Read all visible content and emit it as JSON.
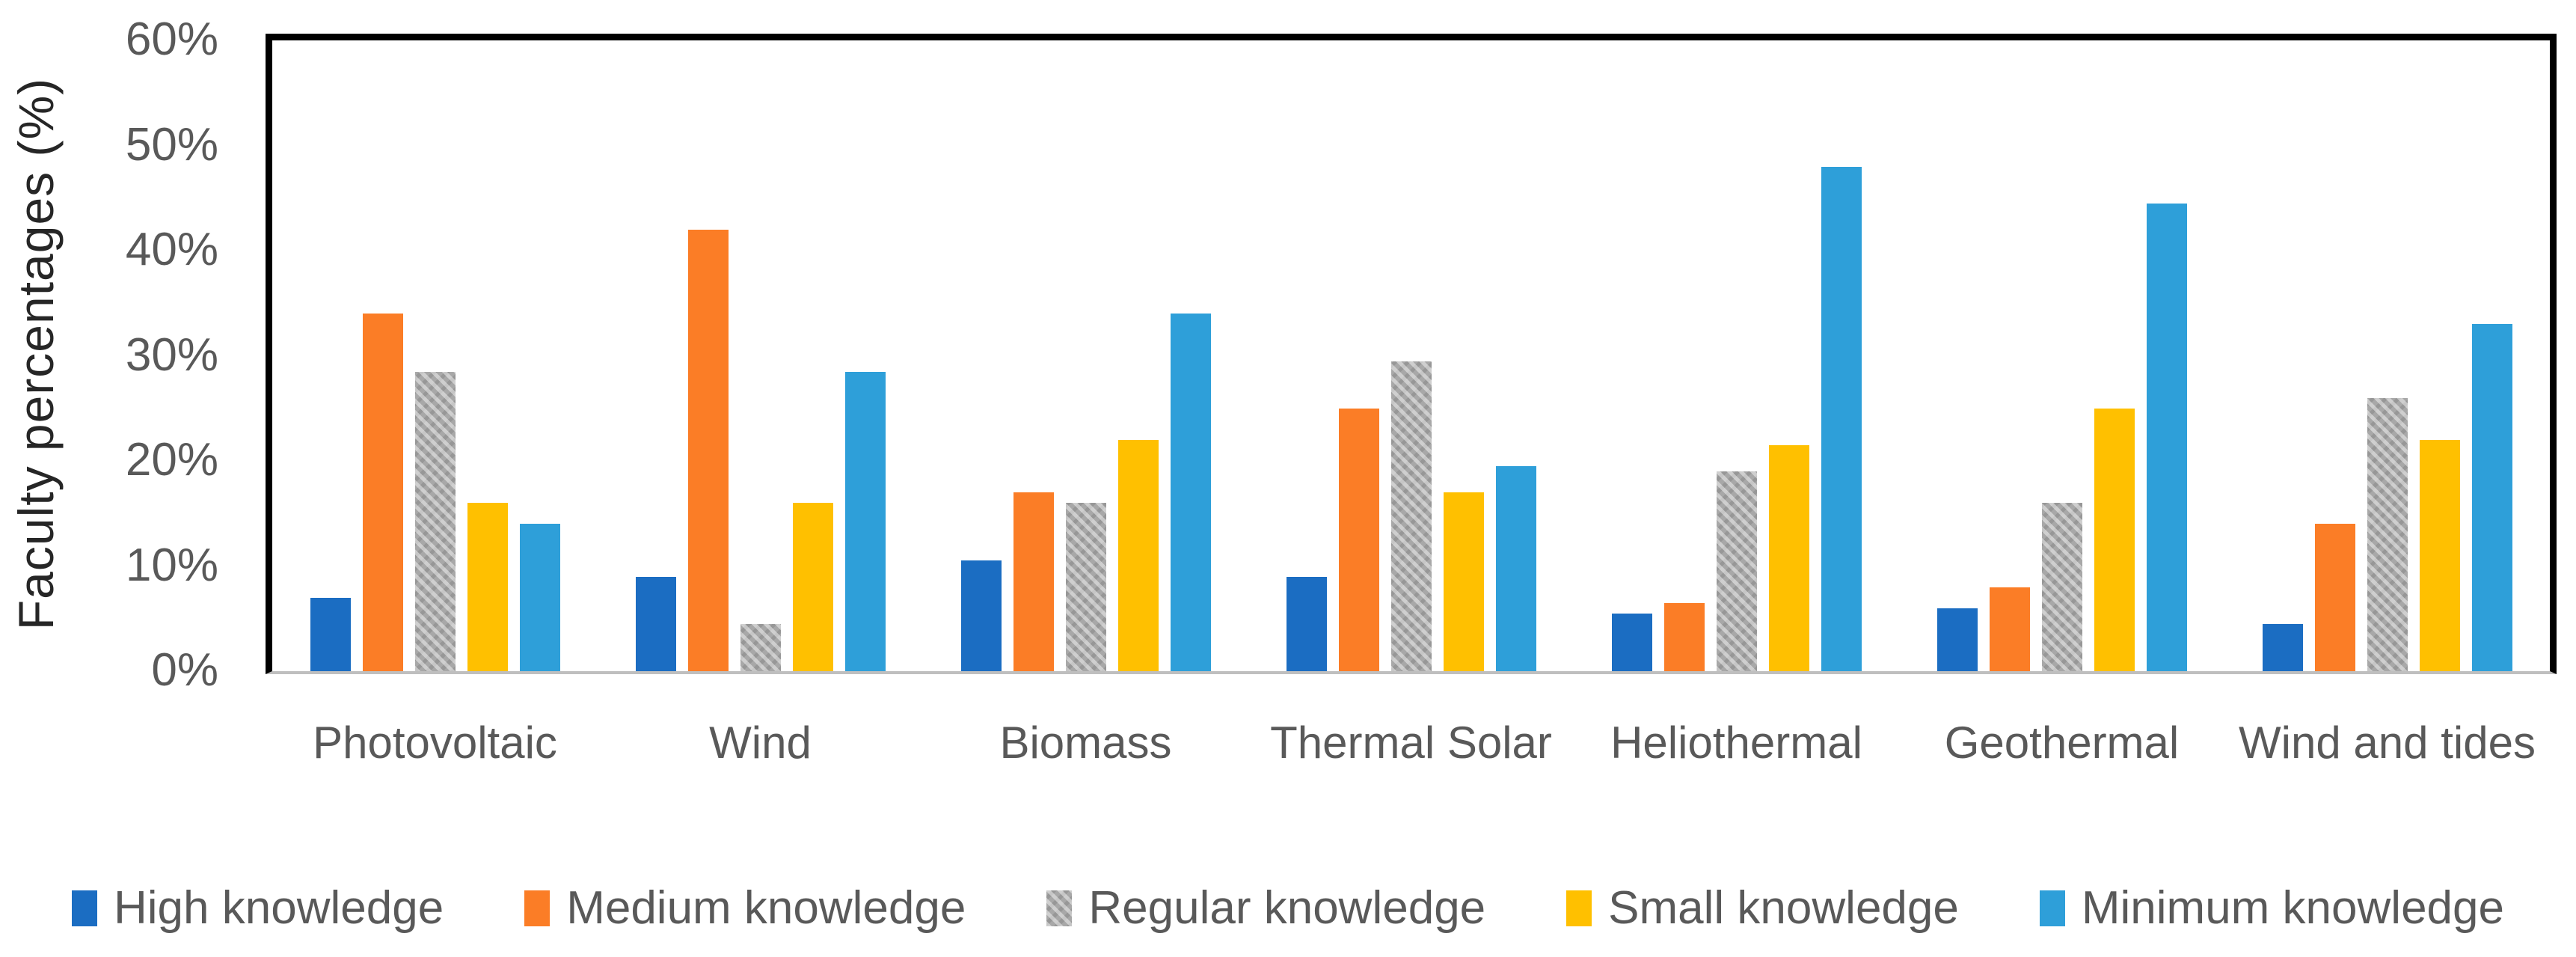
{
  "chart_data": {
    "type": "bar",
    "title": "",
    "xlabel": "",
    "ylabel": "Faculty percentages (%)",
    "ylim": [
      0,
      60
    ],
    "ytick_labels": [
      "0%",
      "10%",
      "20%",
      "30%",
      "40%",
      "50%",
      "60%"
    ],
    "grid": false,
    "legend_position": "bottom",
    "categories": [
      "Photovoltaic",
      "Wind",
      "Biomass",
      "Thermal Solar",
      "Heliothermal",
      "Geothermal",
      "Wind and tides"
    ],
    "series": [
      {
        "name": "High knowledge",
        "color": "#1B6DC2",
        "pattern": false,
        "values": [
          7,
          9,
          10.5,
          9,
          5.5,
          6,
          4.5
        ]
      },
      {
        "name": "Medium knowledge",
        "color": "#FB7D26",
        "pattern": false,
        "values": [
          34,
          42,
          17,
          25,
          6.5,
          8,
          14
        ]
      },
      {
        "name": "Regular knowledge",
        "color": "#A8A8A8",
        "pattern": true,
        "values": [
          28.5,
          4.5,
          16,
          29.5,
          19,
          16,
          26
        ]
      },
      {
        "name": "Small knowledge",
        "color": "#FFC000",
        "pattern": false,
        "values": [
          16,
          16,
          22,
          17,
          21.5,
          25,
          22
        ]
      },
      {
        "name": "Minimum knowledge",
        "color": "#2E9FD9",
        "pattern": false,
        "values": [
          14,
          28.5,
          34,
          19.5,
          48,
          44.5,
          33
        ]
      }
    ],
    "colors": {
      "frame": "#000000",
      "baseline": "#BFBFBF",
      "tick_text": "#595959",
      "category_text": "#595959",
      "legend_text": "#595959",
      "axis_title_text": "#262626"
    }
  }
}
